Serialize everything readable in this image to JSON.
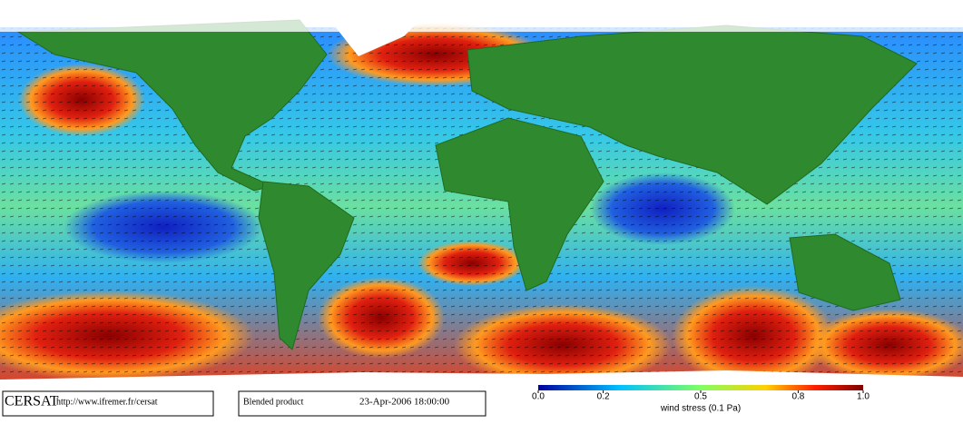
{
  "footer": {
    "logo": "CERSAT",
    "url": "http://www.ifremer.fr/cersat",
    "product": "Blended product",
    "date": "23-Apr-2006 18:00:00"
  },
  "colorbar": {
    "label": "wind stress (0.1 Pa)",
    "range": [
      0,
      1
    ],
    "ticks": [
      {
        "value": 0,
        "label": "0.0"
      },
      {
        "value": 0.2,
        "label": "0.2"
      },
      {
        "value": 0.5,
        "label": "0.5"
      },
      {
        "value": 0.8,
        "label": "0.8"
      },
      {
        "value": 1,
        "label": "1.0"
      }
    ]
  }
}
